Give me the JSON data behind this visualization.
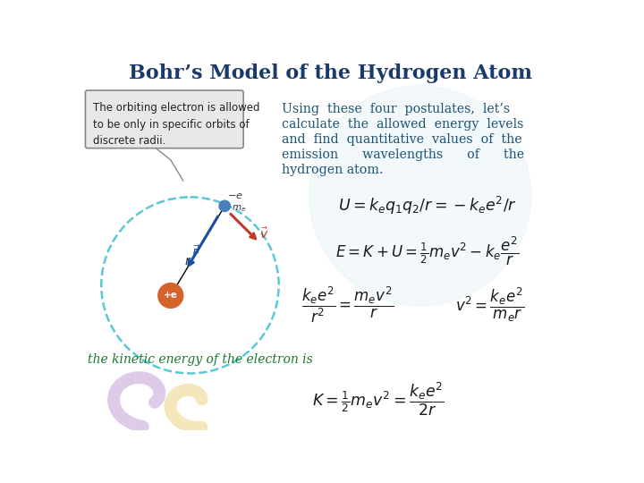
{
  "title": "Bohr’s Model of the Hydrogen Atom",
  "title_color": "#1a3a6b",
  "title_fontsize": 16,
  "bg_color": "#ffffff",
  "text_block_lines": [
    "Using  these  four  postulates,  let’s",
    "calculate  the  allowed  energy  levels",
    "and  find  quantitative  values  of  the",
    "emission      wavelengths      of      the",
    "hydrogen atom."
  ],
  "text_color": "#1a5276",
  "callout_text": "The orbiting electron is allowed\nto be only in specific orbits of\ndiscrete radii.",
  "callout_color": "#e8e8e8",
  "callout_border": "#888888",
  "eq1": "$U = k_eq_1q_2/r = -k_ee^2/r$",
  "eq2": "$E = K + U = \\frac{1}{2}m_ev^2 - k_e\\dfrac{e^2}{r}$",
  "eq3_left": "$\\dfrac{k_ee^2}{r^2} = \\dfrac{m_ev^2}{r}$",
  "eq3_right": "$v^2 = \\dfrac{k_ee^2}{m_er}$",
  "eq4_label": "the kinetic energy of the electron is",
  "eq4_label_color": "#1a7a2e",
  "eq4": "$K = \\frac{1}{2}m_ev^2 = \\dfrac{k_ee^2}{2r}$",
  "eq_color": "#1a1a1a",
  "circle_color": "#5bc8d4",
  "nucleus_color": "#d4622a",
  "electron_color": "#4a7fba",
  "arrow_blue_color": "#1a4fa0",
  "arrow_red_color": "#c0392b",
  "watermark_color": "#cce8f0"
}
